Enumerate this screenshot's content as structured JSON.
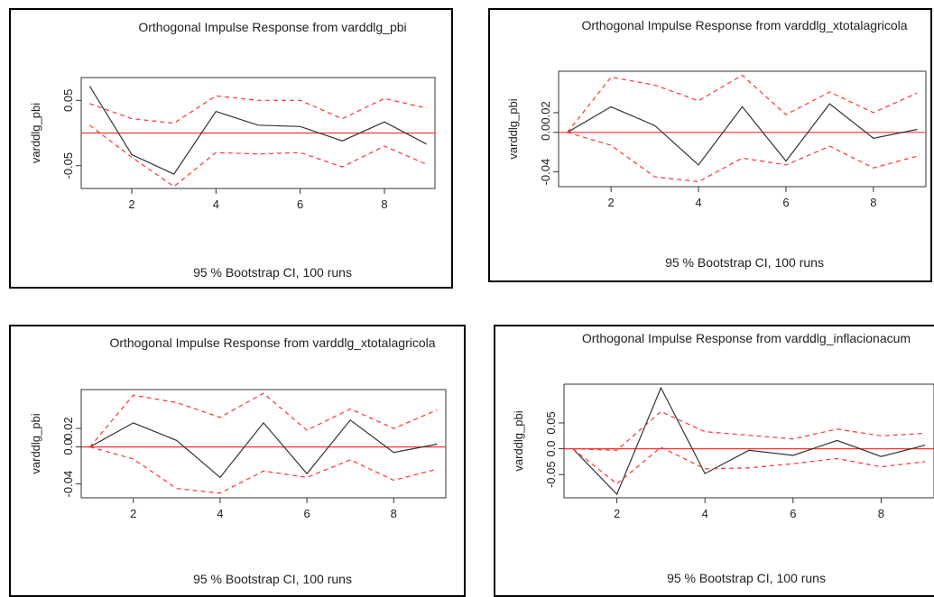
{
  "colors": {
    "response": "#333333",
    "ci_band": "#ff3333",
    "zero_line": "#ff3333",
    "axis": "#333333"
  },
  "chart_data": [
    {
      "type": "line",
      "title": "Orthogonal Impulse Response from varddlg_pbi",
      "xlabel": "95 % Bootstrap CI,  100 runs",
      "ylabel": "varddlg_pbi",
      "x": [
        1,
        2,
        3,
        4,
        5,
        6,
        7,
        8,
        9
      ],
      "xticks": [
        2,
        4,
        6,
        8
      ],
      "yticks": [
        -0.05,
        0.05
      ],
      "ytick_labels": [
        "-0.05",
        "0.05"
      ],
      "xlim": [
        0.8,
        9.2
      ],
      "ylim": [
        -0.085,
        0.085
      ],
      "grid": false,
      "series": [
        {
          "role": "response",
          "values": [
            0.072,
            -0.033,
            -0.063,
            0.033,
            0.012,
            0.01,
            -0.012,
            0.017,
            -0.017
          ]
        },
        {
          "role": "upper",
          "values": [
            0.045,
            0.022,
            0.015,
            0.057,
            0.05,
            0.05,
            0.022,
            0.053,
            0.038
          ]
        },
        {
          "role": "lower",
          "values": [
            0.012,
            -0.037,
            -0.082,
            -0.03,
            -0.032,
            -0.03,
            -0.052,
            -0.02,
            -0.048
          ]
        }
      ]
    },
    {
      "type": "line",
      "title": "Orthogonal Impulse Response from varddlg_xtotalagricola",
      "xlabel": "95 % Bootstrap CI,  100 runs",
      "ylabel": "varddlg_pbi",
      "x": [
        1,
        2,
        3,
        4,
        5,
        6,
        7,
        8,
        9
      ],
      "xticks": [
        2,
        4,
        6,
        8
      ],
      "yticks": [
        -0.04,
        0.0,
        0.02
      ],
      "ytick_labels": [
        "-0.04",
        "0.0",
        "0.02"
      ],
      "xlim": [
        0.8,
        9.2
      ],
      "ylim": [
        -0.055,
        0.062
      ],
      "grid": false,
      "series": [
        {
          "role": "response",
          "values": [
            0.0,
            0.026,
            0.007,
            -0.033,
            0.026,
            -0.029,
            0.029,
            -0.006,
            0.003
          ]
        },
        {
          "role": "upper",
          "values": [
            0.0,
            0.056,
            0.048,
            0.032,
            0.058,
            0.018,
            0.041,
            0.02,
            0.04
          ]
        },
        {
          "role": "lower",
          "values": [
            0.0,
            -0.013,
            -0.045,
            -0.05,
            -0.026,
            -0.033,
            -0.014,
            -0.036,
            -0.024
          ]
        }
      ]
    },
    {
      "type": "line",
      "title": "Orthogonal Impulse Response from varddlg_xtotalagricola",
      "xlabel": "95 % Bootstrap CI,  100 runs",
      "ylabel": "varddlg_pbi",
      "x": [
        1,
        2,
        3,
        4,
        5,
        6,
        7,
        8,
        9
      ],
      "xticks": [
        2,
        4,
        6,
        8
      ],
      "yticks": [
        -0.04,
        0.0,
        0.02
      ],
      "ytick_labels": [
        "-0.04",
        "0.0",
        "0.02"
      ],
      "xlim": [
        0.8,
        9.2
      ],
      "ylim": [
        -0.055,
        0.062
      ],
      "grid": false,
      "series": [
        {
          "role": "response",
          "values": [
            0.0,
            0.026,
            0.007,
            -0.033,
            0.026,
            -0.029,
            0.029,
            -0.006,
            0.003
          ]
        },
        {
          "role": "upper",
          "values": [
            0.0,
            0.056,
            0.048,
            0.032,
            0.058,
            0.018,
            0.041,
            0.02,
            0.04
          ]
        },
        {
          "role": "lower",
          "values": [
            0.0,
            -0.013,
            -0.045,
            -0.05,
            -0.026,
            -0.033,
            -0.014,
            -0.036,
            -0.024
          ]
        }
      ]
    },
    {
      "type": "line",
      "title": "Orthogonal Impulse Response from varddlg_inflacionacum",
      "xlabel": "95 % Bootstrap CI,  100 runs",
      "ylabel": "varddlg_pbi",
      "x": [
        1,
        2,
        3,
        4,
        5,
        6,
        7,
        8,
        9
      ],
      "xticks": [
        2,
        4,
        6,
        8
      ],
      "yticks": [
        -0.05,
        0.0,
        0.05
      ],
      "ytick_labels": [
        "-0.05",
        "0.0",
        "0.05"
      ],
      "xlim": [
        0.8,
        9.2
      ],
      "ylim": [
        -0.095,
        0.125
      ],
      "grid": false,
      "series": [
        {
          "role": "response",
          "values": [
            0.0,
            -0.088,
            0.118,
            -0.048,
            -0.003,
            -0.013,
            0.016,
            -0.015,
            0.007
          ]
        },
        {
          "role": "upper",
          "values": [
            0.0,
            -0.003,
            0.072,
            0.033,
            0.026,
            0.019,
            0.038,
            0.025,
            0.03
          ]
        },
        {
          "role": "lower",
          "values": [
            0.0,
            -0.068,
            0.003,
            -0.039,
            -0.037,
            -0.029,
            -0.019,
            -0.035,
            -0.025
          ]
        }
      ]
    }
  ]
}
